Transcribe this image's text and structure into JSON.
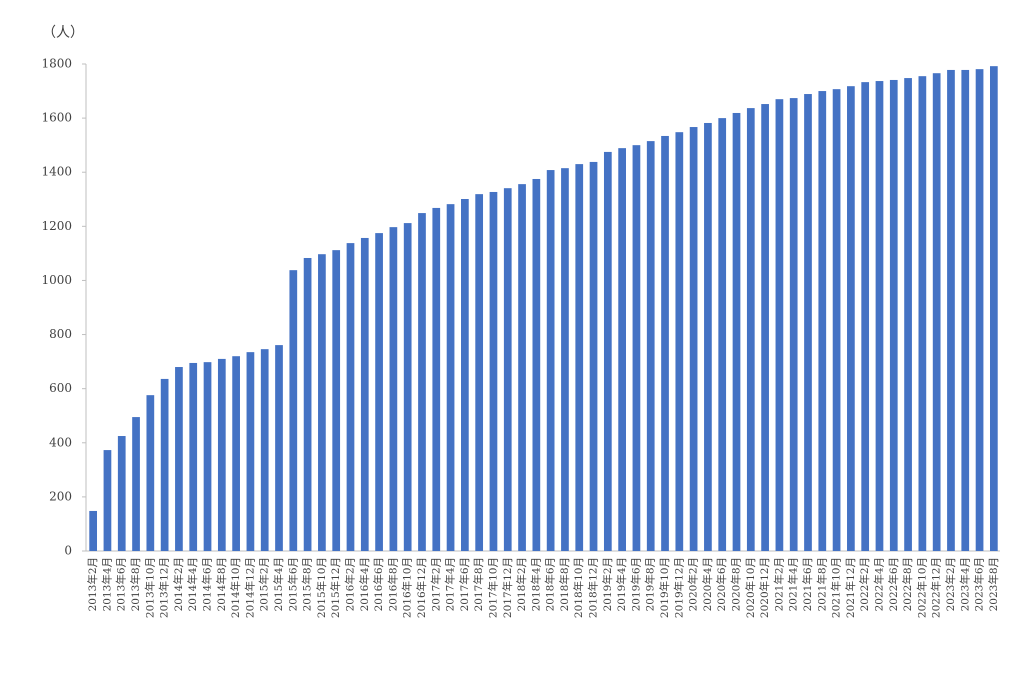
{
  "chart_data": {
    "type": "bar",
    "y_label": "（人）",
    "categories": [
      "2013年2月",
      "2013年4月",
      "2013年6月",
      "2013年8月",
      "2013年10月",
      "2013年12月",
      "2014年2月",
      "2014年4月",
      "2014年6月",
      "2014年8月",
      "2014年10月",
      "2014年12月",
      "2015年2月",
      "2015年4月",
      "2015年6月",
      "2015年8月",
      "2015年10月",
      "2015年12月",
      "2016年2月",
      "2016年4月",
      "2016年6月",
      "2016年8月",
      "2016年10月",
      "2016年12月",
      "2017年2月",
      "2017年4月",
      "2017年6月",
      "2017年8月",
      "2017年10月",
      "2017年12月",
      "2018年2月",
      "2018年4月",
      "2018年6月",
      "2018年8月",
      "2018年10月",
      "2018年12月",
      "2019年2月",
      "2019年4月",
      "2019年6月",
      "2019年8月",
      "2019年10月",
      "2019年12月",
      "2020年2月",
      "2020年4月",
      "2020年6月",
      "2020年8月",
      "2020年10月",
      "2020年12月",
      "2021年2月",
      "2021年4月",
      "2021年6月",
      "2021年8月",
      "2021年10月",
      "2021年12月",
      "2022年2月",
      "2022年4月",
      "2022年6月",
      "2022年8月",
      "2022年10月",
      "2022年12月",
      "2023年2月",
      "2023年4月",
      "2023年6月",
      "2023年8月"
    ],
    "values": [
      148,
      373,
      425,
      495,
      576,
      636,
      680,
      695,
      698,
      710,
      720,
      735,
      746,
      761,
      1038,
      1083,
      1097,
      1112,
      1138,
      1157,
      1175,
      1197,
      1212,
      1249,
      1268,
      1282,
      1301,
      1319,
      1327,
      1341,
      1356,
      1375,
      1408,
      1415,
      1430,
      1438,
      1475,
      1489,
      1500,
      1515,
      1534,
      1548,
      1567,
      1582,
      1600,
      1619,
      1637,
      1652,
      1670,
      1674,
      1689,
      1700,
      1707,
      1718,
      1733,
      1737,
      1741,
      1748,
      1755,
      1766,
      1778,
      1778,
      1781,
      1792
    ],
    "color": "#4472c4",
    "ylim": [
      0,
      1800
    ],
    "yticks": [
      0,
      200,
      400,
      600,
      800,
      1000,
      1200,
      1400,
      1600,
      1800
    ],
    "grid": false
  }
}
